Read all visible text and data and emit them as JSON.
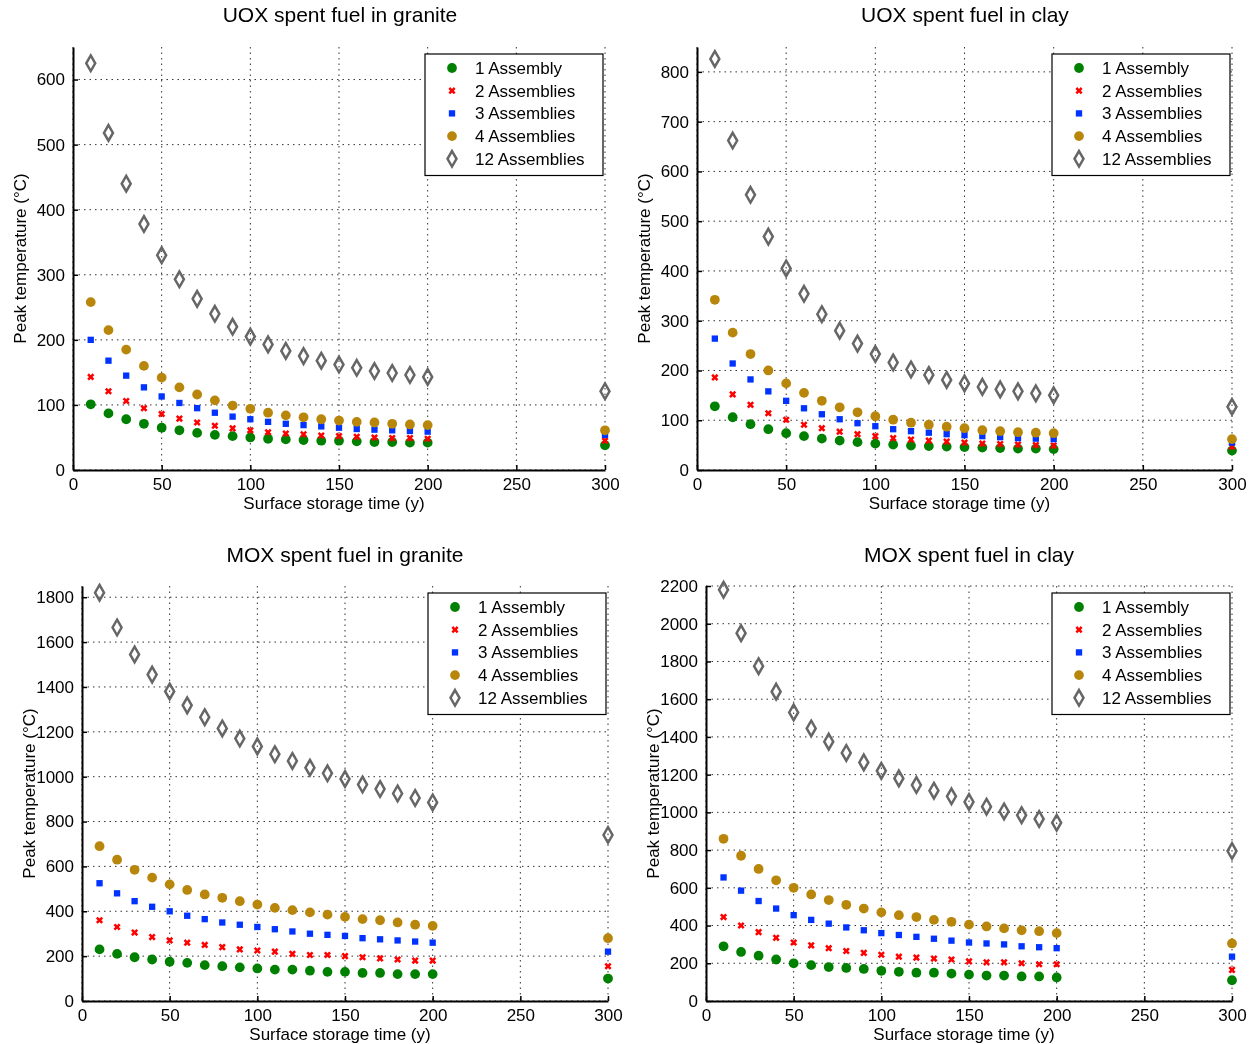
{
  "chart_data": [
    {
      "type": "scatter",
      "title": "UOX spent fuel in granite",
      "xlabel": "Surface storage time (y)",
      "ylabel": "Peak temperature (°C)",
      "x": [
        10,
        20,
        30,
        40,
        50,
        60,
        70,
        80,
        90,
        100,
        110,
        120,
        130,
        140,
        150,
        160,
        170,
        180,
        190,
        200,
        300
      ],
      "xlim": [
        0,
        300
      ],
      "xticks": [
        0,
        50,
        100,
        150,
        200,
        250,
        300
      ],
      "ylim": [
        0,
        650
      ],
      "yticks": [
        0,
        100,
        200,
        300,
        400,
        500,
        600
      ],
      "grid": true,
      "legend": "top right",
      "series": [
        {
          "name": "1 Assembly",
          "color": "#008000",
          "marker": "circle",
          "values": [
            101,
            87,
            78,
            71,
            65,
            61,
            57,
            54,
            52,
            50,
            48,
            47,
            46,
            45,
            45,
            44,
            43,
            43,
            42,
            42,
            38
          ]
        },
        {
          "name": "2 Assemblies",
          "color": "#ff0000",
          "marker": "cross",
          "values": [
            143,
            121,
            106,
            95,
            86,
            79,
            73,
            68,
            64,
            61,
            58,
            56,
            55,
            53,
            52,
            51,
            50,
            49,
            49,
            48,
            45
          ]
        },
        {
          "name": "3 Assemblies",
          "color": "#0033ff",
          "marker": "square",
          "values": [
            200,
            168,
            145,
            127,
            113,
            103,
            95,
            88,
            82,
            78,
            74,
            71,
            69,
            67,
            65,
            63,
            62,
            61,
            60,
            59,
            54
          ]
        },
        {
          "name": "4 Assemblies",
          "color": "#b8860b",
          "marker": "circle",
          "values": [
            258,
            215,
            185,
            160,
            142,
            127,
            116,
            107,
            99,
            94,
            88,
            84,
            81,
            78,
            76,
            74,
            73,
            71,
            70,
            69,
            61
          ]
        },
        {
          "name": "12 Assemblies",
          "color": "#666666",
          "marker": "diamond",
          "values": [
            625,
            518,
            440,
            378,
            330,
            293,
            263,
            240,
            220,
            205,
            193,
            183,
            175,
            168,
            162,
            157,
            152,
            149,
            146,
            143,
            121
          ]
        }
      ]
    },
    {
      "type": "scatter",
      "title": "UOX spent fuel in clay",
      "xlabel": "Surface storage time (y)",
      "ylabel": "Peak temperature (°C)",
      "x": [
        10,
        20,
        30,
        40,
        50,
        60,
        70,
        80,
        90,
        100,
        110,
        120,
        130,
        140,
        150,
        160,
        170,
        180,
        190,
        200,
        300
      ],
      "xlim": [
        0,
        300
      ],
      "xticks": [
        0,
        50,
        100,
        150,
        200,
        250,
        300
      ],
      "ylim": [
        0,
        850
      ],
      "yticks": [
        0,
        100,
        200,
        300,
        400,
        500,
        600,
        700,
        800
      ],
      "grid": true,
      "legend": "top right",
      "series": [
        {
          "name": "1 Assembly",
          "color": "#008000",
          "marker": "circle",
          "values": [
            128,
            106,
            92,
            82,
            74,
            68,
            63,
            59,
            56,
            53,
            51,
            49,
            48,
            47,
            46,
            45,
            44,
            43,
            43,
            42,
            39
          ]
        },
        {
          "name": "2 Assemblies",
          "color": "#ff0000",
          "marker": "cross",
          "values": [
            186,
            152,
            131,
            114,
            101,
            91,
            84,
            77,
            72,
            68,
            64,
            61,
            59,
            57,
            55,
            53,
            52,
            51,
            50,
            49,
            47
          ]
        },
        {
          "name": "3 Assemblies",
          "color": "#0033ff",
          "marker": "square",
          "values": [
            264,
            214,
            182,
            158,
            139,
            124,
            112,
            102,
            94,
            88,
            82,
            78,
            75,
            72,
            70,
            68,
            66,
            64,
            63,
            62,
            55
          ]
        },
        {
          "name": "4 Assemblies",
          "color": "#b8860b",
          "marker": "circle",
          "values": [
            342,
            276,
            233,
            200,
            174,
            155,
            139,
            126,
            116,
            108,
            101,
            95,
            91,
            87,
            84,
            80,
            78,
            76,
            75,
            74,
            62
          ]
        },
        {
          "name": "12 Assemblies",
          "color": "#666666",
          "marker": "diamond",
          "values": [
            826,
            662,
            553,
            469,
            405,
            354,
            313,
            280,
            254,
            233,
            216,
            202,
            191,
            181,
            174,
            167,
            162,
            158,
            154,
            150,
            127
          ]
        }
      ]
    },
    {
      "type": "scatter",
      "title": "MOX spent fuel in granite",
      "xlabel": "Surface storage time (y)",
      "ylabel": "Peak temperature (°C)",
      "x": [
        10,
        20,
        30,
        40,
        50,
        60,
        70,
        80,
        90,
        100,
        110,
        120,
        130,
        140,
        150,
        160,
        170,
        180,
        190,
        200,
        300
      ],
      "xlim": [
        0,
        300
      ],
      "xticks": [
        0,
        50,
        100,
        150,
        200,
        250,
        300
      ],
      "ylim": [
        0,
        1850
      ],
      "yticks": [
        0,
        200,
        400,
        600,
        800,
        1000,
        1200,
        1400,
        1600,
        1800
      ],
      "grid": true,
      "legend": "top right",
      "series": [
        {
          "name": "1 Assembly",
          "color": "#008000",
          "marker": "circle",
          "values": [
            230,
            210,
            195,
            185,
            175,
            170,
            160,
            155,
            150,
            145,
            140,
            140,
            135,
            130,
            130,
            125,
            125,
            120,
            120,
            120,
            100
          ]
        },
        {
          "name": "2 Assemblies",
          "color": "#ff0000",
          "marker": "cross",
          "values": [
            360,
            330,
            305,
            285,
            270,
            260,
            250,
            240,
            230,
            225,
            220,
            210,
            205,
            205,
            200,
            195,
            190,
            185,
            180,
            180,
            155
          ]
        },
        {
          "name": "3 Assemblies",
          "color": "#0033ff",
          "marker": "square",
          "values": [
            525,
            480,
            445,
            420,
            400,
            380,
            365,
            350,
            340,
            330,
            320,
            310,
            300,
            295,
            290,
            280,
            275,
            270,
            265,
            260,
            220
          ]
        },
        {
          "name": "4 Assemblies",
          "color": "#b8860b",
          "marker": "circle",
          "values": [
            690,
            630,
            585,
            550,
            520,
            495,
            475,
            460,
            445,
            430,
            415,
            405,
            395,
            385,
            375,
            365,
            360,
            350,
            340,
            335,
            280
          ]
        },
        {
          "name": "12 Assemblies",
          "color": "#666666",
          "marker": "diamond",
          "values": [
            1820,
            1665,
            1545,
            1455,
            1380,
            1318,
            1265,
            1215,
            1170,
            1135,
            1100,
            1070,
            1040,
            1015,
            990,
            965,
            945,
            925,
            905,
            885,
            740
          ]
        }
      ]
    },
    {
      "type": "scatter",
      "title": "MOX spent fuel in clay",
      "xlabel": "Surface storage time (y)",
      "ylabel": "Peak temperature (°C)",
      "x": [
        10,
        20,
        30,
        40,
        50,
        60,
        70,
        80,
        90,
        100,
        110,
        120,
        130,
        140,
        150,
        160,
        170,
        180,
        190,
        200,
        300
      ],
      "xlim": [
        0,
        300
      ],
      "xticks": [
        0,
        50,
        100,
        150,
        200,
        250,
        300
      ],
      "ylim": [
        0,
        2200
      ],
      "yticks": [
        0,
        200,
        400,
        600,
        800,
        1000,
        1200,
        1400,
        1600,
        1800,
        2000,
        2200
      ],
      "grid": true,
      "legend": "top right",
      "series": [
        {
          "name": "1 Assembly",
          "color": "#008000",
          "marker": "circle",
          "values": [
            290,
            260,
            240,
            220,
            200,
            190,
            180,
            175,
            170,
            160,
            155,
            150,
            150,
            145,
            140,
            135,
            135,
            130,
            130,
            125,
            110
          ]
        },
        {
          "name": "2 Assemblies",
          "color": "#ff0000",
          "marker": "cross",
          "values": [
            445,
            400,
            365,
            335,
            310,
            295,
            280,
            265,
            255,
            245,
            235,
            230,
            225,
            220,
            210,
            205,
            205,
            200,
            195,
            195,
            165
          ]
        },
        {
          "name": "3 Assemblies",
          "color": "#0033ff",
          "marker": "square",
          "values": [
            655,
            585,
            530,
            490,
            455,
            430,
            410,
            390,
            375,
            360,
            350,
            340,
            330,
            320,
            310,
            305,
            300,
            290,
            285,
            280,
            235
          ]
        },
        {
          "name": "4 Assemblies",
          "color": "#b8860b",
          "marker": "circle",
          "values": [
            860,
            770,
            700,
            640,
            600,
            565,
            535,
            510,
            490,
            470,
            455,
            445,
            430,
            420,
            405,
            395,
            385,
            375,
            370,
            360,
            305
          ]
        },
        {
          "name": "12 Assemblies",
          "color": "#666666",
          "marker": "diamond",
          "values": [
            2180,
            1950,
            1775,
            1640,
            1530,
            1445,
            1375,
            1315,
            1265,
            1220,
            1180,
            1145,
            1115,
            1085,
            1055,
            1030,
            1005,
            985,
            965,
            945,
            795
          ]
        }
      ]
    }
  ]
}
